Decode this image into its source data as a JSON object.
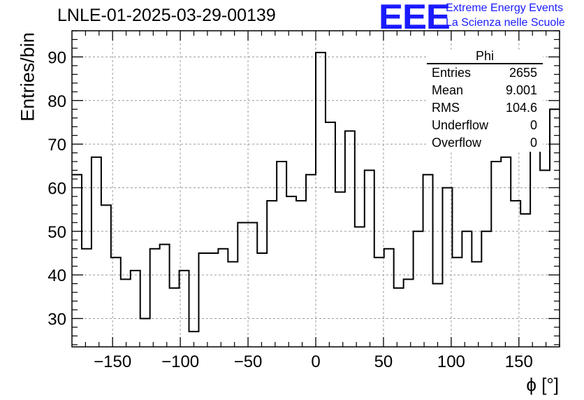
{
  "header": {
    "title": "LNLE-01-2025-03-29-00139",
    "logo_text": "EEE",
    "logo_line1": "Extreme Energy Events",
    "logo_line2": "La Scienza nelle Scuole"
  },
  "stats": {
    "title": "Phi",
    "rows": [
      {
        "label": "Entries",
        "value": "2655"
      },
      {
        "label": "Mean",
        "value": "9.001"
      },
      {
        "label": "RMS",
        "value": "104.6"
      },
      {
        "label": "Underflow",
        "value": "0"
      },
      {
        "label": "Overflow",
        "value": "0"
      }
    ]
  },
  "chart_data": {
    "type": "histogram",
    "title": "LNLE-01-2025-03-29-00139",
    "xlabel": "ϕ [°]",
    "ylabel": "Entries/bin",
    "xlim": [
      -180,
      180
    ],
    "ylim": [
      23.5,
      96
    ],
    "bin_width": 7.2,
    "bin_edges_start": -180,
    "xticks": [
      -150,
      -100,
      -50,
      0,
      50,
      100,
      150
    ],
    "xtick_labels": [
      "−150",
      "−100",
      "−50",
      "0",
      "50",
      "100",
      "150"
    ],
    "yticks": [
      30,
      40,
      50,
      60,
      70,
      80,
      90
    ],
    "ytick_labels": [
      "30",
      "40",
      "50",
      "60",
      "70",
      "80",
      "90"
    ],
    "grid": true,
    "values": [
      63,
      46,
      67,
      56,
      44,
      39,
      41,
      30,
      46,
      47,
      37,
      41,
      27,
      45,
      45,
      46,
      43,
      52,
      52,
      45,
      57,
      66,
      58,
      57,
      63,
      91,
      75,
      59,
      73,
      51,
      64,
      44,
      46,
      37,
      39,
      50,
      63,
      38,
      60,
      44,
      50,
      43,
      50,
      66,
      67,
      57,
      54,
      79,
      64,
      78
    ]
  }
}
